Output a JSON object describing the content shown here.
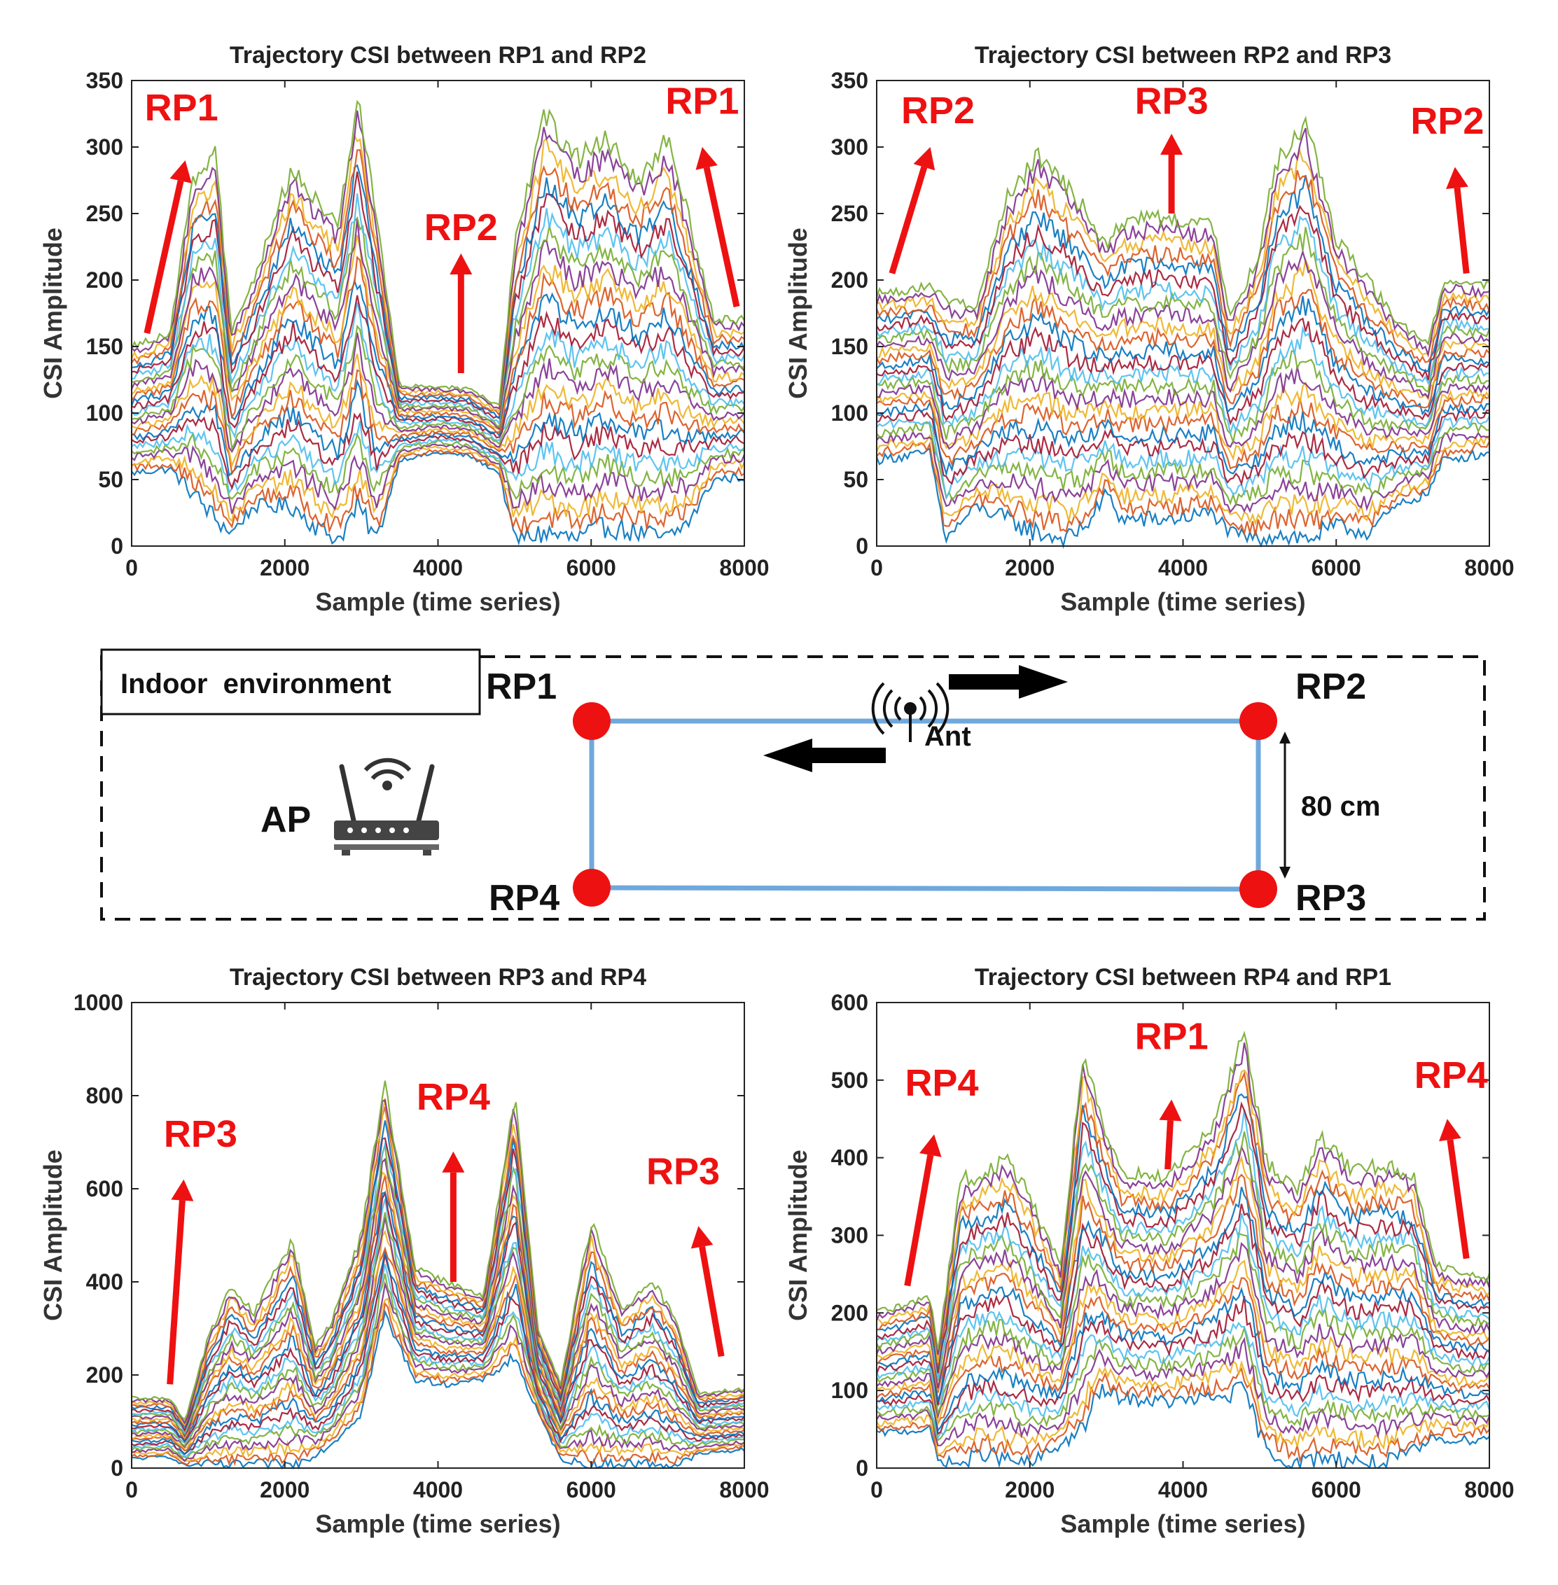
{
  "chart_data": [
    {
      "type": "line",
      "title": "Trajectory CSI between RP1 and RP2",
      "xlabel": "Sample (time series)",
      "ylabel": "CSI Amplitude",
      "xlim": [
        0,
        8000
      ],
      "ylim": [
        0,
        350
      ],
      "xticks": [
        0,
        2000,
        4000,
        6000,
        8000
      ],
      "yticks": [
        0,
        50,
        100,
        150,
        200,
        250,
        300,
        350
      ],
      "series_envelope": {
        "x": [
          0,
          500,
          800,
          1100,
          1300,
          1600,
          2100,
          2400,
          2700,
          2950,
          3200,
          3500,
          4000,
          4400,
          4800,
          5000,
          5400,
          5800,
          6200,
          6600,
          7000,
          7300,
          7600,
          8000
        ],
        "upper": [
          150,
          160,
          275,
          295,
          160,
          200,
          285,
          260,
          240,
          340,
          245,
          120,
          120,
          118,
          105,
          225,
          325,
          290,
          305,
          275,
          305,
          240,
          170,
          170
        ],
        "lower": [
          55,
          58,
          40,
          20,
          10,
          30,
          30,
          15,
          5,
          30,
          5,
          65,
          70,
          68,
          55,
          5,
          10,
          5,
          15,
          10,
          5,
          20,
          50,
          52
        ]
      },
      "annotations": [
        {
          "text": "RP1",
          "at": [
            200,
            160
          ],
          "arrow_to": [
            700,
            290
          ],
          "label_at": [
            650,
            320
          ]
        },
        {
          "text": "RP2",
          "at": [
            4300,
            130
          ],
          "arrow_to": [
            4300,
            220
          ],
          "label_at": [
            4300,
            230
          ]
        },
        {
          "text": "RP1",
          "at": [
            7900,
            180
          ],
          "arrow_to": [
            7450,
            300
          ],
          "label_at": [
            7450,
            325
          ]
        }
      ]
    },
    {
      "type": "line",
      "title": "Trajectory CSI between RP2 and RP3",
      "xlabel": "Sample (time series)",
      "ylabel": "CSI Amplitude",
      "xlim": [
        0,
        8000
      ],
      "ylim": [
        0,
        350
      ],
      "xticks": [
        0,
        2000,
        4000,
        6000,
        8000
      ],
      "yticks": [
        0,
        50,
        100,
        150,
        200,
        250,
        300,
        350
      ],
      "series_envelope": {
        "x": [
          0,
          700,
          900,
          1300,
          1700,
          2100,
          2500,
          2800,
          3000,
          3200,
          3800,
          4400,
          4600,
          5000,
          5200,
          5600,
          6000,
          6400,
          6800,
          7200,
          7400,
          8000
        ],
        "upper": [
          190,
          195,
          185,
          180,
          260,
          295,
          270,
          245,
          225,
          245,
          248,
          240,
          170,
          220,
          285,
          320,
          230,
          200,
          170,
          150,
          200,
          195
        ],
        "lower": [
          65,
          70,
          5,
          30,
          20,
          10,
          5,
          20,
          40,
          20,
          20,
          25,
          10,
          5,
          10,
          5,
          15,
          10,
          30,
          40,
          65,
          70
        ]
      },
      "annotations": [
        {
          "text": "RP2",
          "at": [
            200,
            205
          ],
          "arrow_to": [
            700,
            300
          ],
          "label_at": [
            800,
            318
          ]
        },
        {
          "text": "RP3",
          "at": [
            3850,
            250
          ],
          "arrow_to": [
            3850,
            310
          ],
          "label_at": [
            3850,
            325
          ]
        },
        {
          "text": "RP2",
          "at": [
            7700,
            205
          ],
          "arrow_to": [
            7550,
            285
          ],
          "label_at": [
            7450,
            310
          ]
        }
      ]
    },
    {
      "type": "line",
      "title": "Trajectory CSI between RP3 and RP4",
      "xlabel": "Sample (time series)",
      "ylabel": "CSI Amplitude",
      "xlim": [
        0,
        8000
      ],
      "ylim": [
        0,
        1000
      ],
      "xticks": [
        0,
        2000,
        4000,
        6000,
        8000
      ],
      "yticks": [
        0,
        200,
        400,
        600,
        800,
        1000
      ],
      "series_envelope": {
        "x": [
          0,
          500,
          700,
          1000,
          1300,
          1600,
          2100,
          2400,
          2600,
          3000,
          3300,
          3700,
          4100,
          4600,
          5000,
          5300,
          5600,
          6000,
          6400,
          6800,
          7100,
          7400,
          8000
        ],
        "upper": [
          150,
          150,
          100,
          280,
          390,
          330,
          490,
          260,
          310,
          500,
          830,
          430,
          400,
          370,
          800,
          300,
          180,
          530,
          340,
          400,
          320,
          160,
          170
        ],
        "lower": [
          20,
          25,
          5,
          10,
          5,
          10,
          5,
          30,
          50,
          120,
          330,
          190,
          180,
          190,
          240,
          120,
          20,
          5,
          10,
          10,
          5,
          30,
          40
        ]
      },
      "annotations": [
        {
          "text": "RP3",
          "at": [
            500,
            180
          ],
          "arrow_to": [
            680,
            620
          ],
          "label_at": [
            900,
            690
          ]
        },
        {
          "text": "RP4",
          "at": [
            4200,
            400
          ],
          "arrow_to": [
            4200,
            680
          ],
          "label_at": [
            4200,
            770
          ]
        },
        {
          "text": "RP3",
          "at": [
            7700,
            240
          ],
          "arrow_to": [
            7400,
            520
          ],
          "label_at": [
            7200,
            610
          ]
        }
      ]
    },
    {
      "type": "line",
      "title": "Trajectory CSI between RP4 and RP1",
      "xlabel": "Sample (time series)",
      "ylabel": "CSI Amplitude",
      "xlim": [
        0,
        8000
      ],
      "ylim": [
        0,
        600
      ],
      "xticks": [
        0,
        2000,
        4000,
        6000,
        8000
      ],
      "yticks": [
        0,
        100,
        200,
        300,
        400,
        500,
        600
      ],
      "series_envelope": {
        "x": [
          0,
          700,
          800,
          1100,
          1400,
          1700,
          2000,
          2400,
          2700,
          2900,
          3200,
          3800,
          4400,
          4800,
          5100,
          5500,
          5800,
          6200,
          6600,
          7000,
          7300,
          7600,
          8000
        ],
        "upper": [
          200,
          220,
          150,
          370,
          380,
          400,
          350,
          260,
          540,
          460,
          380,
          375,
          440,
          560,
          390,
          360,
          430,
          380,
          390,
          380,
          260,
          250,
          245
        ],
        "lower": [
          45,
          50,
          10,
          5,
          20,
          10,
          5,
          30,
          50,
          100,
          90,
          85,
          90,
          100,
          20,
          5,
          15,
          10,
          5,
          20,
          40,
          35,
          40
        ]
      },
      "annotations": [
        {
          "text": "RP4",
          "at": [
            400,
            235
          ],
          "arrow_to": [
            750,
            430
          ],
          "label_at": [
            850,
            480
          ]
        },
        {
          "text": "RP1",
          "at": [
            3800,
            385
          ],
          "arrow_to": [
            3850,
            475
          ],
          "label_at": [
            3850,
            540
          ]
        },
        {
          "text": "RP4",
          "at": [
            7700,
            270
          ],
          "arrow_to": [
            7450,
            450
          ],
          "label_at": [
            7500,
            490
          ]
        }
      ]
    }
  ],
  "diagram": {
    "box_label": "Indoor  environment",
    "ap_label": "AP",
    "ant_label": "Ant",
    "distance_label": "80 cm",
    "rp_labels": {
      "rp1": "RP1",
      "rp2": "RP2",
      "rp3": "RP3",
      "rp4": "RP4"
    },
    "colors": {
      "path": "#6fa8dc",
      "node": "#ee1111",
      "arrow": "#000000"
    }
  },
  "series_palette": [
    "#0072bd",
    "#d95319",
    "#edb120",
    "#7e2f8e",
    "#77ac30",
    "#4dbeee",
    "#a2142f"
  ]
}
